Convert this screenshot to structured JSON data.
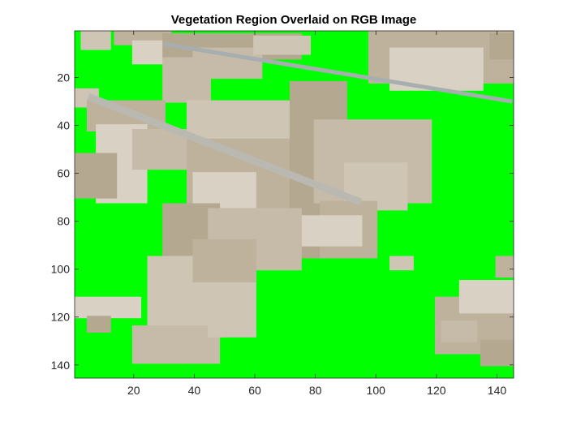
{
  "chart_data": {
    "type": "heatmap",
    "title": "Vegetation Region Overlaid on RGB Image",
    "xlabel": "",
    "ylabel": "",
    "xlim": [
      0.5,
      145.5
    ],
    "ylim": [
      0.5,
      145.5
    ],
    "y_reversed": true,
    "x_ticks": [
      20,
      40,
      60,
      80,
      100,
      120,
      140
    ],
    "y_ticks": [
      20,
      40,
      60,
      80,
      100,
      120,
      140
    ],
    "grid": false,
    "overlay_color": "#00ff00",
    "background_image_tone": "#c9bfae"
  }
}
